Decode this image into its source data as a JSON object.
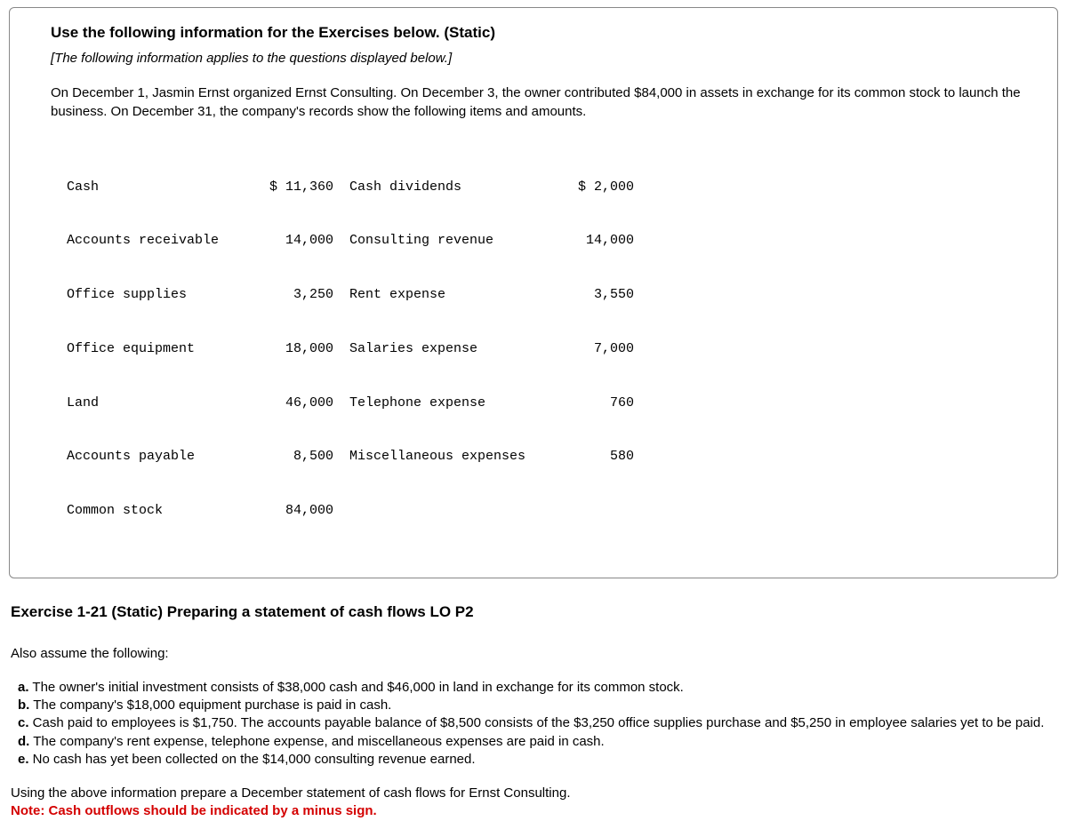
{
  "infoBox": {
    "heading": "Use the following information for the Exercises below. (Static)",
    "subheading": "[The following information applies to the questions displayed below.]",
    "intro": "On December 1, Jasmin Ernst organized Ernst Consulting. On December 3, the owner contributed $84,000 in assets in exchange for its common stock to launch the business. On December 31, the company's records show the following items and amounts."
  },
  "accounts": {
    "left": {
      "labels": [
        "Cash",
        "Accounts receivable",
        "Office supplies",
        "Office equipment",
        "Land",
        "Accounts payable",
        "Common stock"
      ],
      "values": [
        "$ 11,360",
        "14,000",
        "3,250",
        "18,000",
        "46,000",
        "8,500",
        "84,000"
      ]
    },
    "right": {
      "labels": [
        "Cash dividends",
        "Consulting revenue",
        "Rent expense",
        "Salaries expense",
        "Telephone expense",
        "Miscellaneous expenses"
      ],
      "values": [
        "$ 2,000",
        "14,000",
        "3,550",
        "7,000",
        "760",
        "580"
      ]
    }
  },
  "exercise": {
    "title": "Exercise 1-21 (Static) Preparing a statement of cash flows LO P2",
    "assumeHeading": "Also assume the following:",
    "items": [
      {
        "letter": "a.",
        "text": " The owner's initial investment consists of $38,000 cash and $46,000 in land in exchange for its common stock."
      },
      {
        "letter": "b.",
        "text": " The company's $18,000 equipment purchase is paid in cash."
      },
      {
        "letter": "c.",
        "text": " Cash paid to employees is $1,750. The accounts payable balance of $8,500 consists of the $3,250 office supplies purchase and $5,250 in employee salaries yet to be paid."
      },
      {
        "letter": "d.",
        "text": " The company's rent expense, telephone expense, and miscellaneous expenses are paid in cash."
      },
      {
        "letter": "e.",
        "text": " No cash has yet been collected on the $14,000 consulting revenue earned."
      }
    ],
    "closing": "Using the above information prepare a December statement of cash flows for Ernst Consulting.",
    "note": "Note: Cash outflows should be indicated by a minus sign."
  }
}
